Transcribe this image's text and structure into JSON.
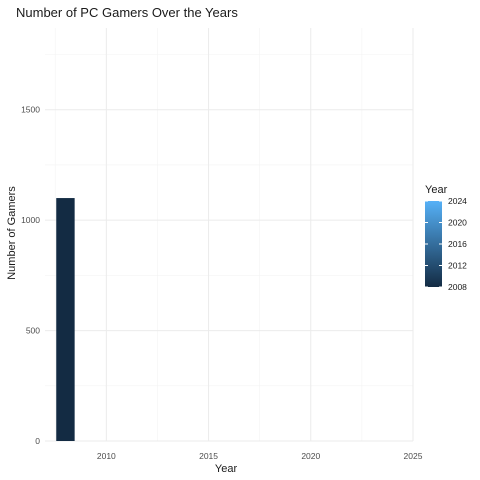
{
  "chart_data": {
    "type": "bar",
    "title": "Number of PC Gamers Over the Years",
    "xlabel": "Year",
    "ylabel": "Number of Gamers",
    "x": [
      2008
    ],
    "values": [
      1100
    ],
    "xlim": [
      2007,
      2025
    ],
    "ylim": [
      0,
      1870
    ],
    "x_ticks": [
      2010,
      2015,
      2020,
      2025
    ],
    "y_ticks": [
      0,
      500,
      1000,
      1500
    ],
    "grid": true,
    "legend": {
      "title": "Year",
      "placement": "right",
      "type": "colorbar",
      "ticks": [
        2024,
        2020,
        2016,
        2012,
        2008
      ],
      "range": [
        2008,
        2024
      ],
      "color_low": "#132b43",
      "color_high": "#56b1f7"
    }
  }
}
